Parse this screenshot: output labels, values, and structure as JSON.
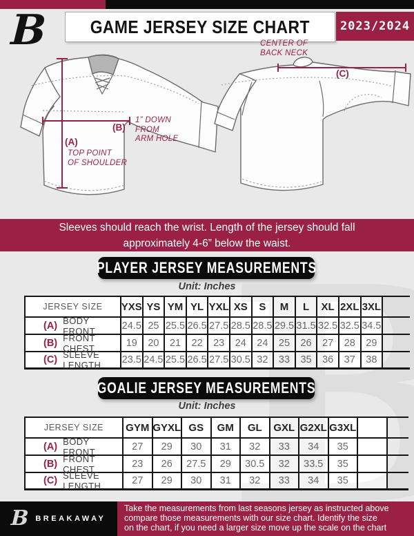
{
  "header": {
    "logo_letter": "B",
    "title": "GAME JERSEY SIZE CHART",
    "season": "2023/2024"
  },
  "diagram": {
    "front": {
      "a_label": "(A)",
      "a_note": "TOP POINT\nOF SHOULDER",
      "b_label": "(B)",
      "b_note": "1” DOWN\nFROM\nARM HOLE"
    },
    "back": {
      "c_label": "(C)",
      "c_note": "CENTER OF\nBACK NECK"
    }
  },
  "notice": "Sleeves should reach the wrist. Length of the jersey should fall\napproximately 4-6” below the waist.",
  "player_table": {
    "title": "PLAYER JERSEY MEASUREMENTS",
    "unit": "Unit: Inches",
    "size_header": "JERSEY SIZE",
    "columns": [
      "YXS",
      "YS",
      "YM",
      "YL",
      "YXL",
      "XS",
      "S",
      "M",
      "L",
      "XL",
      "2XL",
      "3XL"
    ],
    "has_empty_col": false,
    "rows": [
      {
        "key": "(A)",
        "label": "BODY FRONT",
        "values": [
          "24.5",
          "25",
          "25.5",
          "26.5",
          "27.5",
          "28.5",
          "28.5",
          "29.5",
          "31.5",
          "32.5",
          "32.5",
          "34.5"
        ]
      },
      {
        "key": "(B)",
        "label": "FRONT CHEST",
        "values": [
          "19",
          "20",
          "21",
          "22",
          "23",
          "24",
          "24",
          "25",
          "26",
          "27",
          "28",
          "29"
        ]
      },
      {
        "key": "(C)",
        "label": "SLEEVE LENGTH",
        "values": [
          "23.5",
          "24.5",
          "25.5",
          "26.5",
          "27.5",
          "30.5",
          "32",
          "33",
          "35",
          "36",
          "37",
          "38"
        ]
      }
    ]
  },
  "goalie_table": {
    "title": "GOALIE JERSEY MEASUREMENTS",
    "unit": "Unit: Inches",
    "size_header": "JERSEY SIZE",
    "columns": [
      "GYM",
      "GYXL",
      "GS",
      "GM",
      "GL",
      "GXL",
      "G2XL",
      "G3XL"
    ],
    "has_empty_col": true,
    "rows": [
      {
        "key": "(A)",
        "label": "BODY FRONT",
        "values": [
          "27",
          "29",
          "30",
          "31",
          "32",
          "33",
          "34",
          "35"
        ]
      },
      {
        "key": "(B)",
        "label": "FRONT CHEST",
        "values": [
          "23",
          "26",
          "27.5",
          "29",
          "30.5",
          "32",
          "33.5",
          "35"
        ]
      },
      {
        "key": "(C)",
        "label": "SLEEVE LENGTH",
        "values": [
          "27",
          "29",
          "30",
          "31",
          "32",
          "33",
          "34",
          "35"
        ]
      }
    ]
  },
  "watermark_letter": "B",
  "footer": {
    "logo_letter": "B",
    "brand": "BREAKAWAY",
    "note": "Take the measurements from last seasons jersey as instructed above\ncompare those measurements  with our size chart. Identify the size\non the chart, if you need a larger size move up the scale on the chart"
  },
  "colors": {
    "maroon": "#9A2145",
    "black": "#0D0D0D",
    "background": "#E9E9E9",
    "table_line": "#161616"
  }
}
